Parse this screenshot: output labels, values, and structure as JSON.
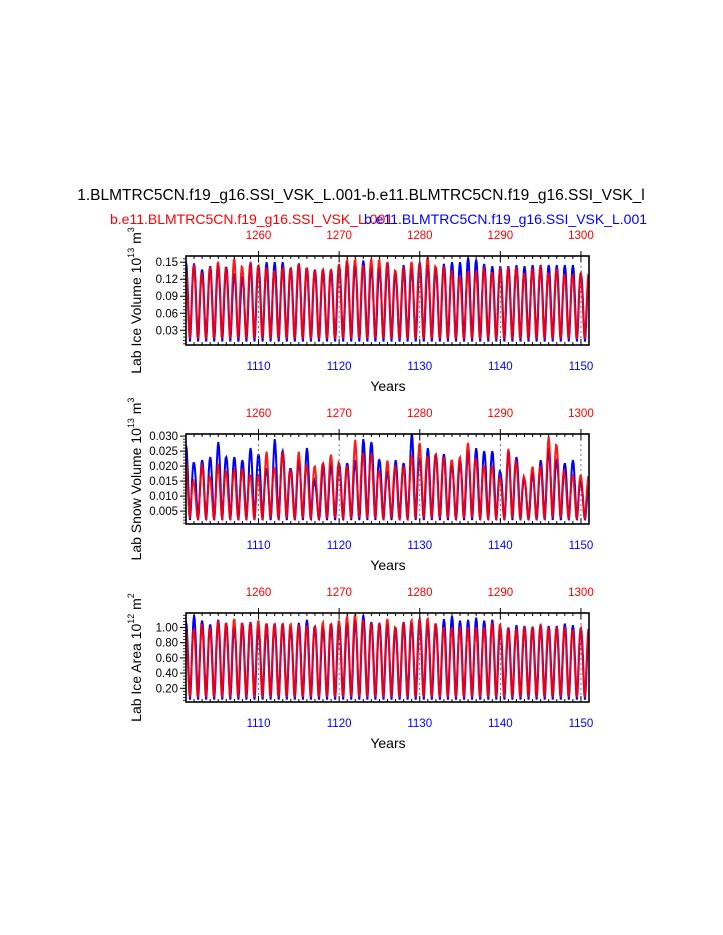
{
  "title": "1.BLMTRC5CN.f19_g16.SSI_VSK_L.001-b.e11.BLMTRC5CN.f19_g16.SSI_VSK_l",
  "colors": {
    "case1": "#ff0000",
    "case2": "#0000ff",
    "frame": "#000000",
    "grid": "#555555"
  },
  "chart_data": [
    {
      "type": "line",
      "name": "ice-volume",
      "ylabel": {
        "text": "Lab Ice Volume 10",
        "exp": "13",
        "unit": " m",
        "unit_exp": "3"
      },
      "xlabel": "Years",
      "xlim_bottom": [
        1101,
        1151
      ],
      "xlim_top": [
        1251,
        1301
      ],
      "xticks_bottom": [
        "1110",
        "1120",
        "1130",
        "1140",
        "1150"
      ],
      "xticks_top": [
        "1260",
        "1270",
        "1280",
        "1290",
        "1300"
      ],
      "ylim": [
        0.004,
        0.161
      ],
      "yticks": [
        0.03,
        0.06,
        0.09,
        0.12,
        0.15
      ],
      "ytick_labels": [
        "0.03",
        "0.06",
        "0.09",
        "0.12",
        "0.15"
      ],
      "series": [
        {
          "name": "b.e11.BLMTRC5CN.f19_g16.SSI_VSK_L.001",
          "color": "red",
          "years": "1251-1300",
          "annual_min": 0.012,
          "annual_max": [
            0.142,
            0.145,
            0.13,
            0.143,
            0.152,
            0.14,
            0.158,
            0.142,
            0.148,
            0.145,
            0.14,
            0.135,
            0.14,
            0.14,
            0.148,
            0.14,
            0.135,
            0.138,
            0.137,
            0.148,
            0.155,
            0.155,
            0.145,
            0.157,
            0.155,
            0.15,
            0.135,
            0.14,
            0.152,
            0.148,
            0.16,
            0.142,
            0.142,
            0.135,
            0.125,
            0.135,
            0.135,
            0.14,
            0.132,
            0.14,
            0.14,
            0.14,
            0.13,
            0.14,
            0.143,
            0.13,
            0.14,
            0.128,
            0.128,
            0.132
          ]
        },
        {
          "name": "b.e11.BLMTRC5CN.f19_g16.SSI_VSK_L.001",
          "color": "blue",
          "years": "1101-1150",
          "annual_min": 0.01,
          "annual_max": [
            0.15,
            0.148,
            0.137,
            0.143,
            0.145,
            0.142,
            0.13,
            0.125,
            0.15,
            0.145,
            0.15,
            0.15,
            0.15,
            0.14,
            0.148,
            0.14,
            0.137,
            0.137,
            0.137,
            0.145,
            0.15,
            0.145,
            0.153,
            0.14,
            0.14,
            0.15,
            0.13,
            0.145,
            0.14,
            0.15,
            0.145,
            0.14,
            0.147,
            0.15,
            0.15,
            0.158,
            0.155,
            0.147,
            0.143,
            0.143,
            0.143,
            0.145,
            0.143,
            0.145,
            0.145,
            0.145,
            0.145,
            0.145,
            0.145,
            0.13
          ]
        }
      ]
    },
    {
      "type": "line",
      "name": "snow-volume",
      "ylabel": {
        "text": "Lab Snow Volume 10",
        "exp": "13",
        "unit": " m",
        "unit_exp": "3"
      },
      "xlabel": "Years",
      "xlim_bottom": [
        1101,
        1151
      ],
      "xlim_top": [
        1251,
        1301
      ],
      "xticks_bottom": [
        "1110",
        "1120",
        "1130",
        "1140",
        "1150"
      ],
      "xticks_top": [
        "1260",
        "1270",
        "1280",
        "1290",
        "1300"
      ],
      "ylim": [
        0.0007,
        0.0307
      ],
      "yticks": [
        0.005,
        0.01,
        0.015,
        0.02,
        0.025,
        0.03
      ],
      "ytick_labels": [
        "0.005",
        "0.010",
        "0.015",
        "0.020",
        "0.025",
        "0.030"
      ],
      "series": [
        {
          "name": "b.e11.BLMTRC5CN.f19_g16.SSI_VSK_L.001",
          "color": "red",
          "years": "1251-1300",
          "annual_min": 0.0022,
          "annual_max": [
            0.022,
            0.014,
            0.021,
            0.016,
            0.021,
            0.018,
            0.019,
            0.019,
            0.017,
            0.017,
            0.025,
            0.019,
            0.025,
            0.018,
            0.025,
            0.02,
            0.02,
            0.021,
            0.024,
            0.021,
            0.02,
            0.029,
            0.024,
            0.024,
            0.018,
            0.022,
            0.02,
            0.02,
            0.024,
            0.028,
            0.023,
            0.024,
            0.023,
            0.022,
            0.023,
            0.028,
            0.022,
            0.02,
            0.02,
            0.016,
            0.026,
            0.021,
            0.016,
            0.02,
            0.02,
            0.03,
            0.027,
            0.017,
            0.017,
            0.017
          ]
        },
        {
          "name": "b.e11.BLMTRC5CN.f19_g16.SSI_VSK_L.001",
          "color": "blue",
          "years": "1101-1150",
          "annual_min": 0.002,
          "annual_max": [
            0.027,
            0.021,
            0.022,
            0.023,
            0.028,
            0.023,
            0.023,
            0.022,
            0.026,
            0.024,
            0.019,
            0.029,
            0.025,
            0.019,
            0.022,
            0.026,
            0.014,
            0.021,
            0.02,
            0.021,
            0.021,
            0.022,
            0.029,
            0.028,
            0.022,
            0.018,
            0.022,
            0.021,
            0.031,
            0.022,
            0.026,
            0.024,
            0.024,
            0.02,
            0.022,
            0.025,
            0.026,
            0.025,
            0.025,
            0.018,
            0.025,
            0.023,
            0.015,
            0.018,
            0.022,
            0.026,
            0.022,
            0.021,
            0.022,
            0.014
          ]
        }
      ]
    },
    {
      "type": "line",
      "name": "ice-area",
      "ylabel": {
        "text": "Lab Ice Area 10",
        "exp": "12",
        "unit": " m",
        "unit_exp": "2"
      },
      "xlabel": "Years",
      "xlim_bottom": [
        1101,
        1151
      ],
      "xlim_top": [
        1251,
        1301
      ],
      "xticks_bottom": [
        "1110",
        "1120",
        "1130",
        "1140",
        "1150"
      ],
      "xticks_top": [
        "1260",
        "1270",
        "1280",
        "1290",
        "1300"
      ],
      "ylim": [
        0.02,
        1.19
      ],
      "yticks": [
        0.2,
        0.4,
        0.6,
        0.8,
        1.0
      ],
      "ytick_labels": [
        "0.20",
        "0.40",
        "0.60",
        "0.80",
        "1.00"
      ],
      "series": [
        {
          "name": "b.e11.BLMTRC5CN.f19_g16.SSI_VSK_L.001",
          "color": "red",
          "years": "1251-1300",
          "annual_min": 0.06,
          "annual_max": [
            1.0,
            0.98,
            1.05,
            1.0,
            1.1,
            1.06,
            1.12,
            1.06,
            1.06,
            1.1,
            1.05,
            1.05,
            1.05,
            1.05,
            1.03,
            1.02,
            1.02,
            1.07,
            1.05,
            1.1,
            1.15,
            1.17,
            1.1,
            1.05,
            1.05,
            1.12,
            1.0,
            1.07,
            1.1,
            1.12,
            1.12,
            1.05,
            1.0,
            1.0,
            1.0,
            1.0,
            1.0,
            1.0,
            1.07,
            1.05,
            0.98,
            0.98,
            1.0,
            1.0,
            1.03,
            1.0,
            1.0,
            1.0,
            0.97,
            1.0
          ]
        },
        {
          "name": "b.e11.BLMTRC5CN.f19_g16.SSI_VSK_L.001",
          "color": "blue",
          "years": "1101-1150",
          "annual_min": 0.05,
          "annual_max": [
            1.08,
            1.16,
            1.09,
            1.04,
            1.1,
            1.05,
            1.0,
            1.05,
            1.07,
            1.0,
            1.05,
            1.05,
            1.05,
            1.0,
            1.06,
            1.1,
            1.02,
            1.0,
            1.05,
            1.05,
            1.05,
            1.1,
            1.16,
            1.07,
            1.06,
            1.05,
            1.0,
            1.07,
            1.05,
            1.1,
            1.05,
            1.04,
            1.11,
            1.15,
            1.09,
            1.1,
            1.13,
            1.09,
            1.1,
            1.0,
            1.0,
            1.03,
            1.02,
            1.01,
            1.04,
            1.02,
            1.02,
            1.05,
            1.03,
            0.99
          ]
        }
      ]
    }
  ]
}
